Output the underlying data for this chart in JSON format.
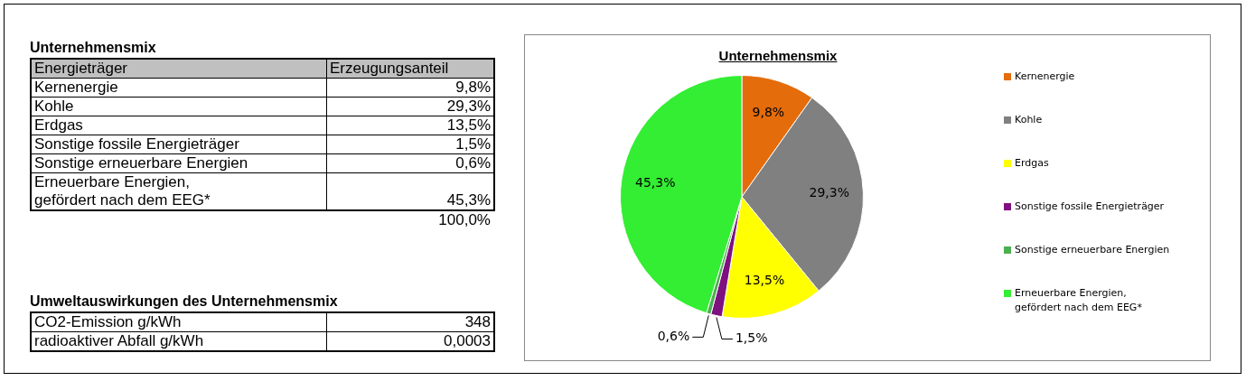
{
  "chart_data": [
    {
      "type": "other",
      "title": "Unternehmensmix",
      "xlabel": "Energieträger",
      "ylabel": "Erzeugungsanteil",
      "categories": [
        "Kernenergie",
        "Kohle",
        "Erdgas",
        "Sonstige fossile Energieträger",
        "Sonstige erneuerbare Energien",
        "Erneuerbare Energien,\ngefördert nach dem EEG*"
      ],
      "value_labels": [
        "9,8%",
        "29,3%",
        "13,5%",
        "1,5%",
        "0,6%",
        "45,3%"
      ],
      "totals": [
        "100,0%"
      ]
    },
    {
      "type": "other",
      "title": "Umweltauswirkungen des Unternehmensmix",
      "categories": [
        "CO2-Emission g/kWh",
        "radioaktiver Abfall g/kWh"
      ],
      "value_labels": [
        "348",
        "0,0003"
      ]
    },
    {
      "type": "pie",
      "title": "Unternehmensmix",
      "categories": [
        "Kernenergie",
        "Kohle",
        "Erdgas",
        "Sonstige fossile Energieträger",
        "Sonstige erneuerbare Energien",
        "Erneuerbare Energien,\ngefördert nach dem EEG*"
      ],
      "values": [
        9.8,
        29.3,
        13.5,
        1.5,
        0.6,
        45.3
      ],
      "colors": [
        "#e46c0a",
        "#808080",
        "#ffff00",
        "#7f1080",
        "#4caf50",
        "#33ee33"
      ],
      "value_labels": [
        "9,8%",
        "29,3%",
        "13,5%",
        "1,5%",
        "0,6%",
        "45,3%"
      ],
      "legend": "right"
    }
  ]
}
